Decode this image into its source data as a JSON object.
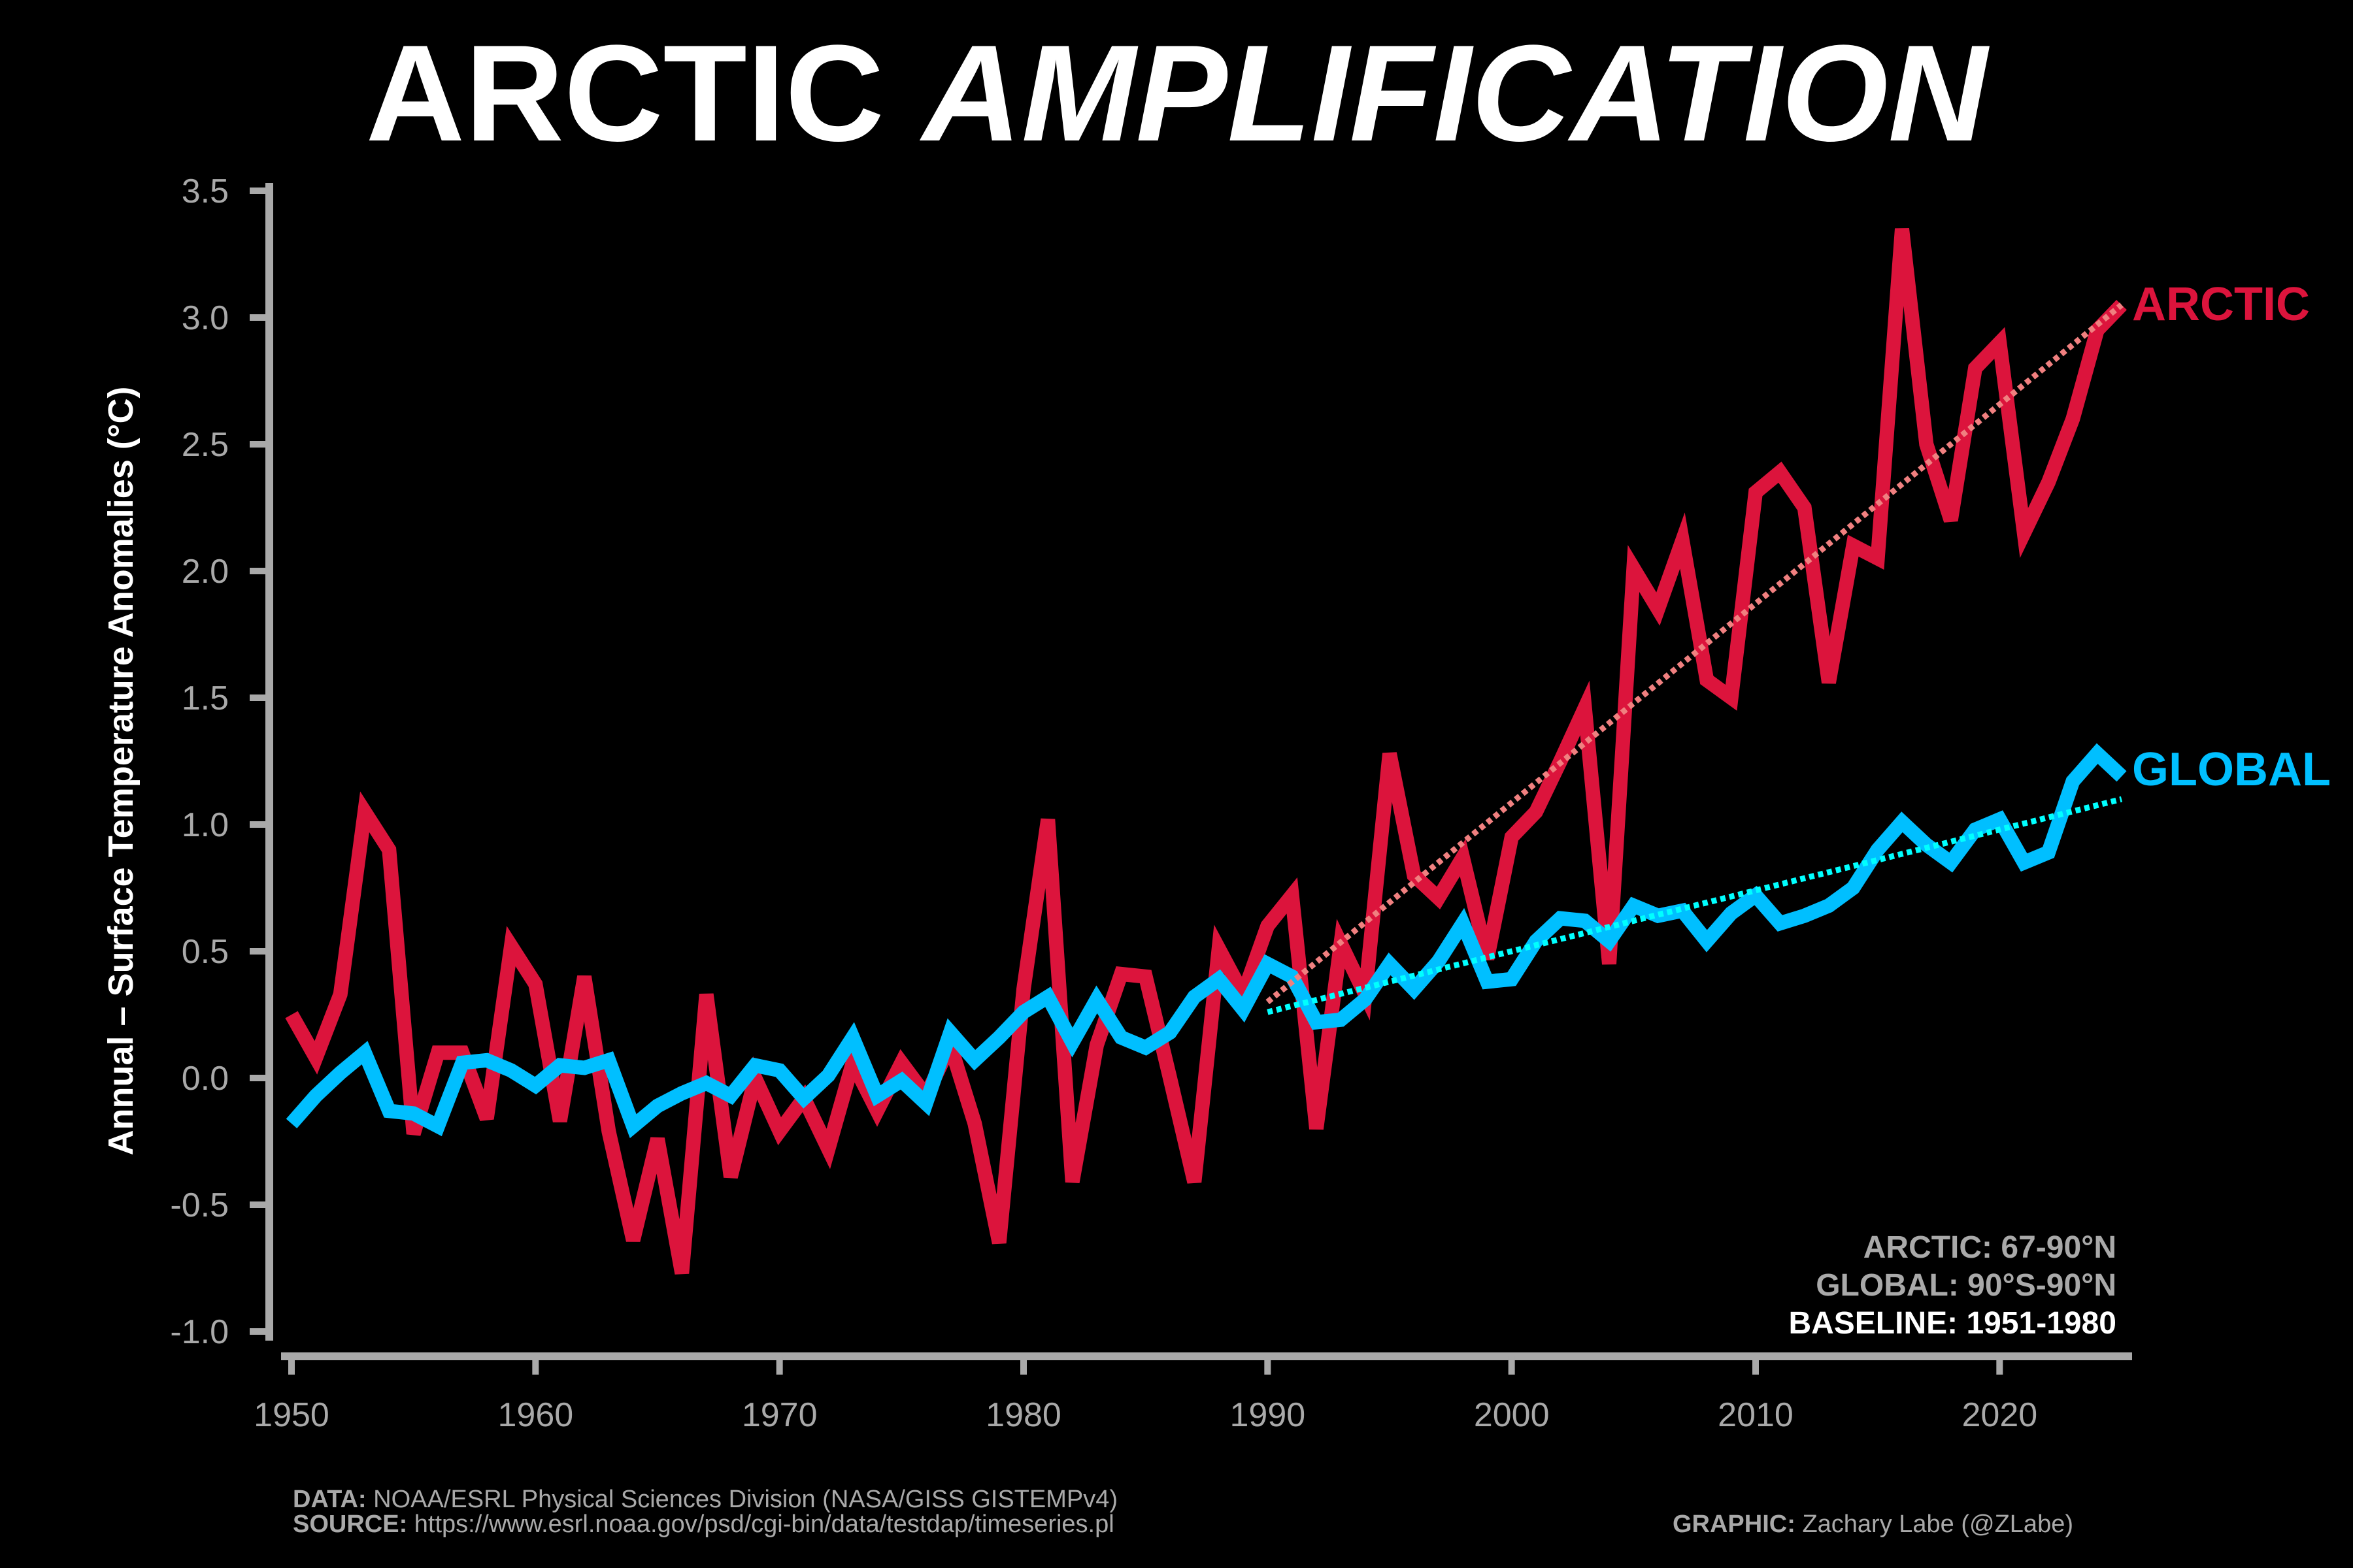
{
  "title_part1": "ARCTIC",
  "title_part2": "AMPLIFICATION",
  "ylabel": "Annual – Surface Temperature Anomalies (°C)",
  "region_notes": {
    "arctic": "ARCTIC: 67-90°N",
    "global": "GLOBAL: 90°S-90°N",
    "baseline": "BASELINE: 1951-1980"
  },
  "footer": {
    "data_label": "DATA:",
    "data_text": "NOAA/ESRL Physical Sciences Division (NASA/GISS GISTEMPv4)",
    "source_label": "SOURCE:",
    "source_text": "https://www.esrl.noaa.gov/psd/cgi-bin/data/testdap/timeseries.pl",
    "graphic_label": "GRAPHIC:",
    "graphic_text": "Zachary Labe (@ZLabe)"
  },
  "colors": {
    "arctic": "#dc143c",
    "global": "#00bfff",
    "arctic_trend": "#f08080",
    "global_trend": "#00ffff",
    "axis": "#a9a9a9",
    "background": "#000000"
  },
  "chart_data": {
    "type": "line",
    "title": "ARCTIC AMPLIFICATION",
    "xlabel": "",
    "ylabel": "Annual – Surface Temperature Anomalies (°C)",
    "xlim": [
      1950,
      2025
    ],
    "ylim": [
      -1.0,
      3.5
    ],
    "xticks": [
      1950,
      1960,
      1970,
      1980,
      1990,
      2000,
      2010,
      2020
    ],
    "yticks": [
      "-1.0",
      "-0.5",
      "0.0",
      "0.5",
      "1.0",
      "1.5",
      "2.0",
      "2.5",
      "3.0",
      "3.5"
    ],
    "grid": false,
    "x": [
      1950,
      1951,
      1952,
      1953,
      1954,
      1955,
      1956,
      1957,
      1958,
      1959,
      1960,
      1961,
      1962,
      1963,
      1964,
      1965,
      1966,
      1967,
      1968,
      1969,
      1970,
      1971,
      1972,
      1973,
      1974,
      1975,
      1976,
      1977,
      1978,
      1979,
      1980,
      1981,
      1982,
      1983,
      1984,
      1985,
      1986,
      1987,
      1988,
      1989,
      1990,
      1991,
      1992,
      1993,
      1994,
      1995,
      1996,
      1997,
      1998,
      1999,
      2000,
      2001,
      2002,
      2003,
      2004,
      2005,
      2006,
      2007,
      2008,
      2009,
      2010,
      2011,
      2012,
      2013,
      2014,
      2015,
      2016,
      2017,
      2018,
      2019,
      2020,
      2021,
      2022,
      2023,
      2024,
      2025
    ],
    "series": [
      {
        "name": "ARCTIC",
        "values": [
          0.25,
          0.08,
          0.33,
          1.05,
          0.9,
          -0.22,
          0.1,
          0.1,
          -0.16,
          0.52,
          0.37,
          -0.17,
          0.4,
          -0.21,
          -0.64,
          -0.24,
          -0.77,
          0.33,
          -0.39,
          0.0,
          -0.21,
          -0.08,
          -0.28,
          0.06,
          -0.13,
          0.06,
          -0.07,
          0.13,
          -0.18,
          -0.65,
          0.35,
          1.02,
          -0.41,
          0.13,
          0.41,
          0.4,
          0.0,
          -0.41,
          0.51,
          0.33,
          0.6,
          0.72,
          -0.2,
          0.53,
          0.33,
          1.28,
          0.8,
          0.71,
          0.87,
          0.47,
          0.95,
          1.05,
          1.25,
          1.46,
          0.45,
          2.01,
          1.85,
          2.12,
          1.57,
          1.5,
          2.31,
          2.39,
          2.25,
          1.56,
          2.1,
          2.05,
          3.35,
          2.5,
          2.2,
          2.8,
          2.9,
          2.15,
          2.35,
          2.6,
          2.95,
          3.05
        ]
      },
      {
        "name": "GLOBAL",
        "values": [
          -0.18,
          -0.07,
          0.02,
          0.1,
          -0.13,
          -0.14,
          -0.19,
          0.06,
          0.07,
          0.03,
          -0.03,
          0.05,
          0.04,
          0.07,
          -0.19,
          -0.11,
          -0.06,
          -0.02,
          -0.07,
          0.05,
          0.03,
          -0.08,
          0.01,
          0.16,
          -0.07,
          -0.01,
          -0.1,
          0.18,
          0.07,
          0.16,
          0.26,
          0.32,
          0.14,
          0.31,
          0.16,
          0.12,
          0.18,
          0.32,
          0.39,
          0.27,
          0.45,
          0.4,
          0.22,
          0.23,
          0.31,
          0.45,
          0.35,
          0.46,
          0.61,
          0.38,
          0.39,
          0.54,
          0.63,
          0.62,
          0.54,
          0.68,
          0.64,
          0.66,
          0.54,
          0.65,
          0.72,
          0.61,
          0.64,
          0.68,
          0.75,
          0.9,
          1.01,
          0.92,
          0.85,
          0.98,
          1.02,
          0.85,
          0.89,
          1.17,
          1.28,
          1.19
        ]
      }
    ],
    "trends": [
      {
        "name": "ARCTIC",
        "x": [
          1990,
          2025
        ],
        "y": [
          0.3,
          3.05
        ]
      },
      {
        "name": "GLOBAL",
        "x": [
          1990,
          2025
        ],
        "y": [
          0.26,
          1.1
        ]
      }
    ]
  }
}
